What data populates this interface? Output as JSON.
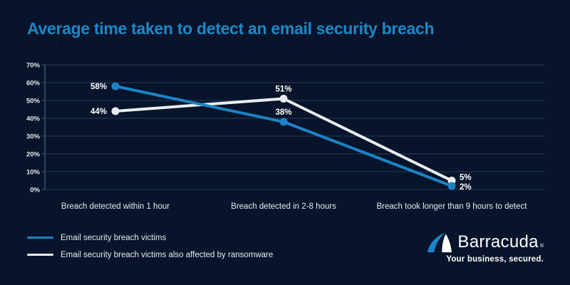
{
  "chart_data": {
    "type": "line",
    "title": "Average time taken to detect an email security breach",
    "categories": [
      "Breach detected within 1 hour",
      "Breach detected in 2-8 hours",
      "Breach took longer than 9 hours to detect"
    ],
    "series": [
      {
        "name": "Email security breach victims",
        "values": [
          58,
          38,
          2
        ],
        "color": "#1C84C6"
      },
      {
        "name": "Email security breach victims also affected by ransomware",
        "values": [
          44,
          51,
          5
        ],
        "color": "#E9EDF1"
      }
    ],
    "data_label_format": "{value}%",
    "ylim": [
      0,
      70
    ],
    "ytick_step": 10,
    "ytick_labels": [
      "0%",
      "10%",
      "20%",
      "30%",
      "40%",
      "50%",
      "60%",
      "70%"
    ],
    "grid": true,
    "legend_position": "bottom-left"
  },
  "colors": {
    "background": "#07142B",
    "title": "#1F87C5",
    "grid": "#2B3C57",
    "axis": "#44546F",
    "tick_label": "#E5EBF2",
    "data_label": "#FFFFFF"
  },
  "brand": {
    "name": "Barracuda",
    "registered_mark": "®",
    "tagline": "Your business, secured.",
    "logo_colors": {
      "fin_blue": "#1C84C6",
      "fin_white": "#FFFFFF"
    }
  }
}
